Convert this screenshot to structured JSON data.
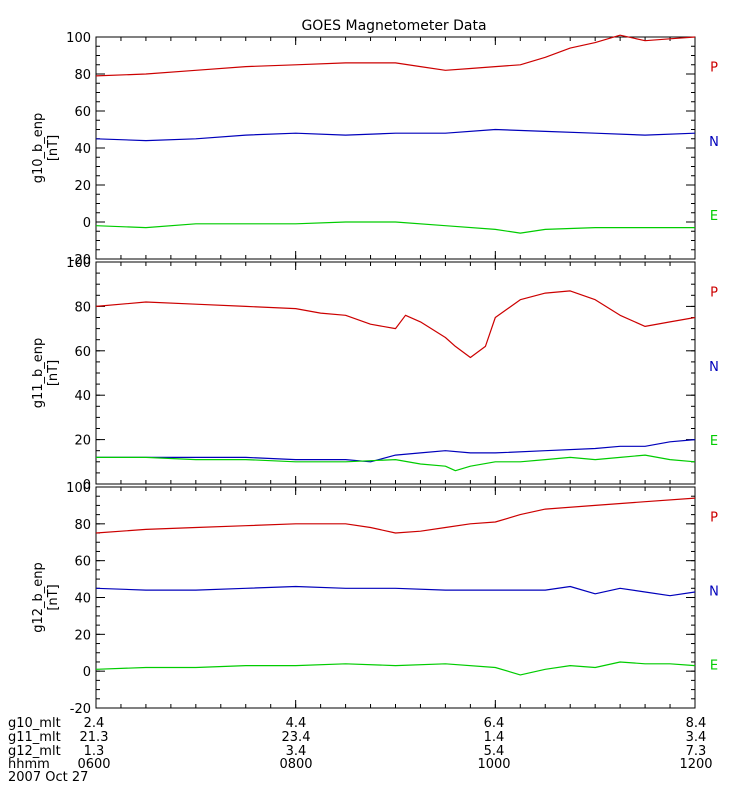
{
  "title": "GOES Magnetometer Data",
  "footer": {
    "rows": [
      {
        "label": "g10_mlt",
        "values": [
          "2.4",
          "4.4",
          "6.4",
          "8.4"
        ]
      },
      {
        "label": "g11_mlt",
        "values": [
          "21.3",
          "23.4",
          "1.4",
          "3.4"
        ]
      },
      {
        "label": "g12_mlt",
        "values": [
          "1.3",
          "3.4",
          "5.4",
          "7.3"
        ]
      },
      {
        "label": "hhmm",
        "values": [
          "0600",
          "0800",
          "1000",
          "1200"
        ]
      }
    ],
    "date": "2007 Oct 27"
  },
  "colors": {
    "P": "#cc0000",
    "N": "#0000bb",
    "E": "#00cc00",
    "axis": "#000000"
  },
  "chart_data": [
    {
      "type": "line",
      "ylabel": "g10_b_enp",
      "yunit": "[nT]",
      "ylim": [
        -20,
        100
      ],
      "yticks": [
        -20,
        0,
        20,
        40,
        60,
        80,
        100
      ],
      "xlim": [
        6,
        12
      ],
      "xticks": [
        6,
        8,
        10,
        12
      ],
      "legend_placement": "right",
      "series": [
        {
          "name": "P",
          "color": "#cc0000",
          "x": [
            6,
            6.5,
            7,
            7.5,
            8,
            8.5,
            9,
            9.25,
            9.5,
            9.75,
            10,
            10.25,
            10.5,
            10.75,
            11,
            11.25,
            11.5,
            11.75,
            12
          ],
          "y": [
            79,
            80,
            82,
            84,
            85,
            86,
            86,
            84,
            82,
            83,
            84,
            85,
            89,
            94,
            97,
            101,
            98,
            99,
            100
          ]
        },
        {
          "name": "N",
          "color": "#0000bb",
          "x": [
            6,
            6.5,
            7,
            7.5,
            8,
            8.5,
            9,
            9.5,
            10,
            10.5,
            11,
            11.5,
            12
          ],
          "y": [
            45,
            44,
            45,
            47,
            48,
            47,
            48,
            48,
            50,
            49,
            48,
            47,
            48
          ]
        },
        {
          "name": "E",
          "color": "#00cc00",
          "x": [
            6,
            6.5,
            7,
            7.5,
            8,
            8.5,
            9,
            9.5,
            10,
            10.25,
            10.5,
            11,
            11.5,
            12
          ],
          "y": [
            -2,
            -3,
            -1,
            -1,
            -1,
            0,
            0,
            -2,
            -4,
            -6,
            -4,
            -3,
            -3,
            -3
          ]
        }
      ]
    },
    {
      "type": "line",
      "ylabel": "g11_b_enp",
      "yunit": "[nT]",
      "ylim": [
        0,
        100
      ],
      "yticks": [
        0,
        20,
        40,
        60,
        80,
        100
      ],
      "xlim": [
        6,
        12
      ],
      "xticks": [
        6,
        8,
        10,
        12
      ],
      "legend_placement": "right",
      "series": [
        {
          "name": "P",
          "color": "#cc0000",
          "x": [
            6,
            6.5,
            7,
            7.5,
            8,
            8.25,
            8.5,
            8.75,
            9,
            9.1,
            9.25,
            9.5,
            9.6,
            9.75,
            9.9,
            10,
            10.25,
            10.5,
            10.75,
            11,
            11.25,
            11.5,
            11.75,
            12
          ],
          "y": [
            80,
            82,
            81,
            80,
            79,
            77,
            76,
            72,
            70,
            76,
            73,
            66,
            62,
            57,
            62,
            75,
            83,
            86,
            87,
            83,
            76,
            71,
            73,
            75
          ]
        },
        {
          "name": "N",
          "color": "#0000bb",
          "x": [
            6,
            6.5,
            7,
            7.5,
            8,
            8.5,
            8.75,
            9,
            9.25,
            9.5,
            9.75,
            10,
            10.5,
            11,
            11.25,
            11.5,
            11.75,
            12
          ],
          "y": [
            12,
            12,
            12,
            12,
            11,
            11,
            10,
            13,
            14,
            15,
            14,
            14,
            15,
            16,
            17,
            17,
            19,
            20
          ]
        },
        {
          "name": "E",
          "color": "#00cc00",
          "x": [
            6,
            6.5,
            7,
            7.5,
            8,
            8.5,
            9,
            9.25,
            9.5,
            9.6,
            9.75,
            10,
            10.25,
            10.5,
            10.75,
            11,
            11.25,
            11.5,
            11.75,
            12
          ],
          "y": [
            12,
            12,
            11,
            11,
            10,
            10,
            11,
            9,
            8,
            6,
            8,
            10,
            10,
            11,
            12,
            11,
            12,
            13,
            11,
            10
          ]
        }
      ]
    },
    {
      "type": "line",
      "ylabel": "g12_b_enp",
      "yunit": "[nT]",
      "ylim": [
        -20,
        100
      ],
      "yticks": [
        -20,
        0,
        20,
        40,
        60,
        80,
        100
      ],
      "xlim": [
        6,
        12
      ],
      "xticks": [
        6,
        8,
        10,
        12
      ],
      "legend_placement": "right",
      "series": [
        {
          "name": "P",
          "color": "#cc0000",
          "x": [
            6,
            6.5,
            7,
            7.5,
            8,
            8.5,
            8.75,
            9,
            9.25,
            9.5,
            9.75,
            10,
            10.25,
            10.5,
            11,
            11.5,
            12
          ],
          "y": [
            75,
            77,
            78,
            79,
            80,
            80,
            78,
            75,
            76,
            78,
            80,
            81,
            85,
            88,
            90,
            92,
            94
          ]
        },
        {
          "name": "N",
          "color": "#0000bb",
          "x": [
            6,
            6.5,
            7,
            7.5,
            8,
            8.5,
            9,
            9.5,
            10,
            10.25,
            10.5,
            10.75,
            11,
            11.25,
            11.5,
            11.75,
            12
          ],
          "y": [
            45,
            44,
            44,
            45,
            46,
            45,
            45,
            44,
            44,
            44,
            44,
            46,
            42,
            45,
            43,
            41,
            43
          ]
        },
        {
          "name": "E",
          "color": "#00cc00",
          "x": [
            6,
            6.5,
            7,
            7.5,
            8,
            8.5,
            9,
            9.5,
            10,
            10.25,
            10.5,
            10.75,
            11,
            11.25,
            11.5,
            11.75,
            12
          ],
          "y": [
            1,
            2,
            2,
            3,
            3,
            4,
            3,
            4,
            2,
            -2,
            1,
            3,
            2,
            5,
            4,
            4,
            3
          ]
        }
      ]
    }
  ]
}
